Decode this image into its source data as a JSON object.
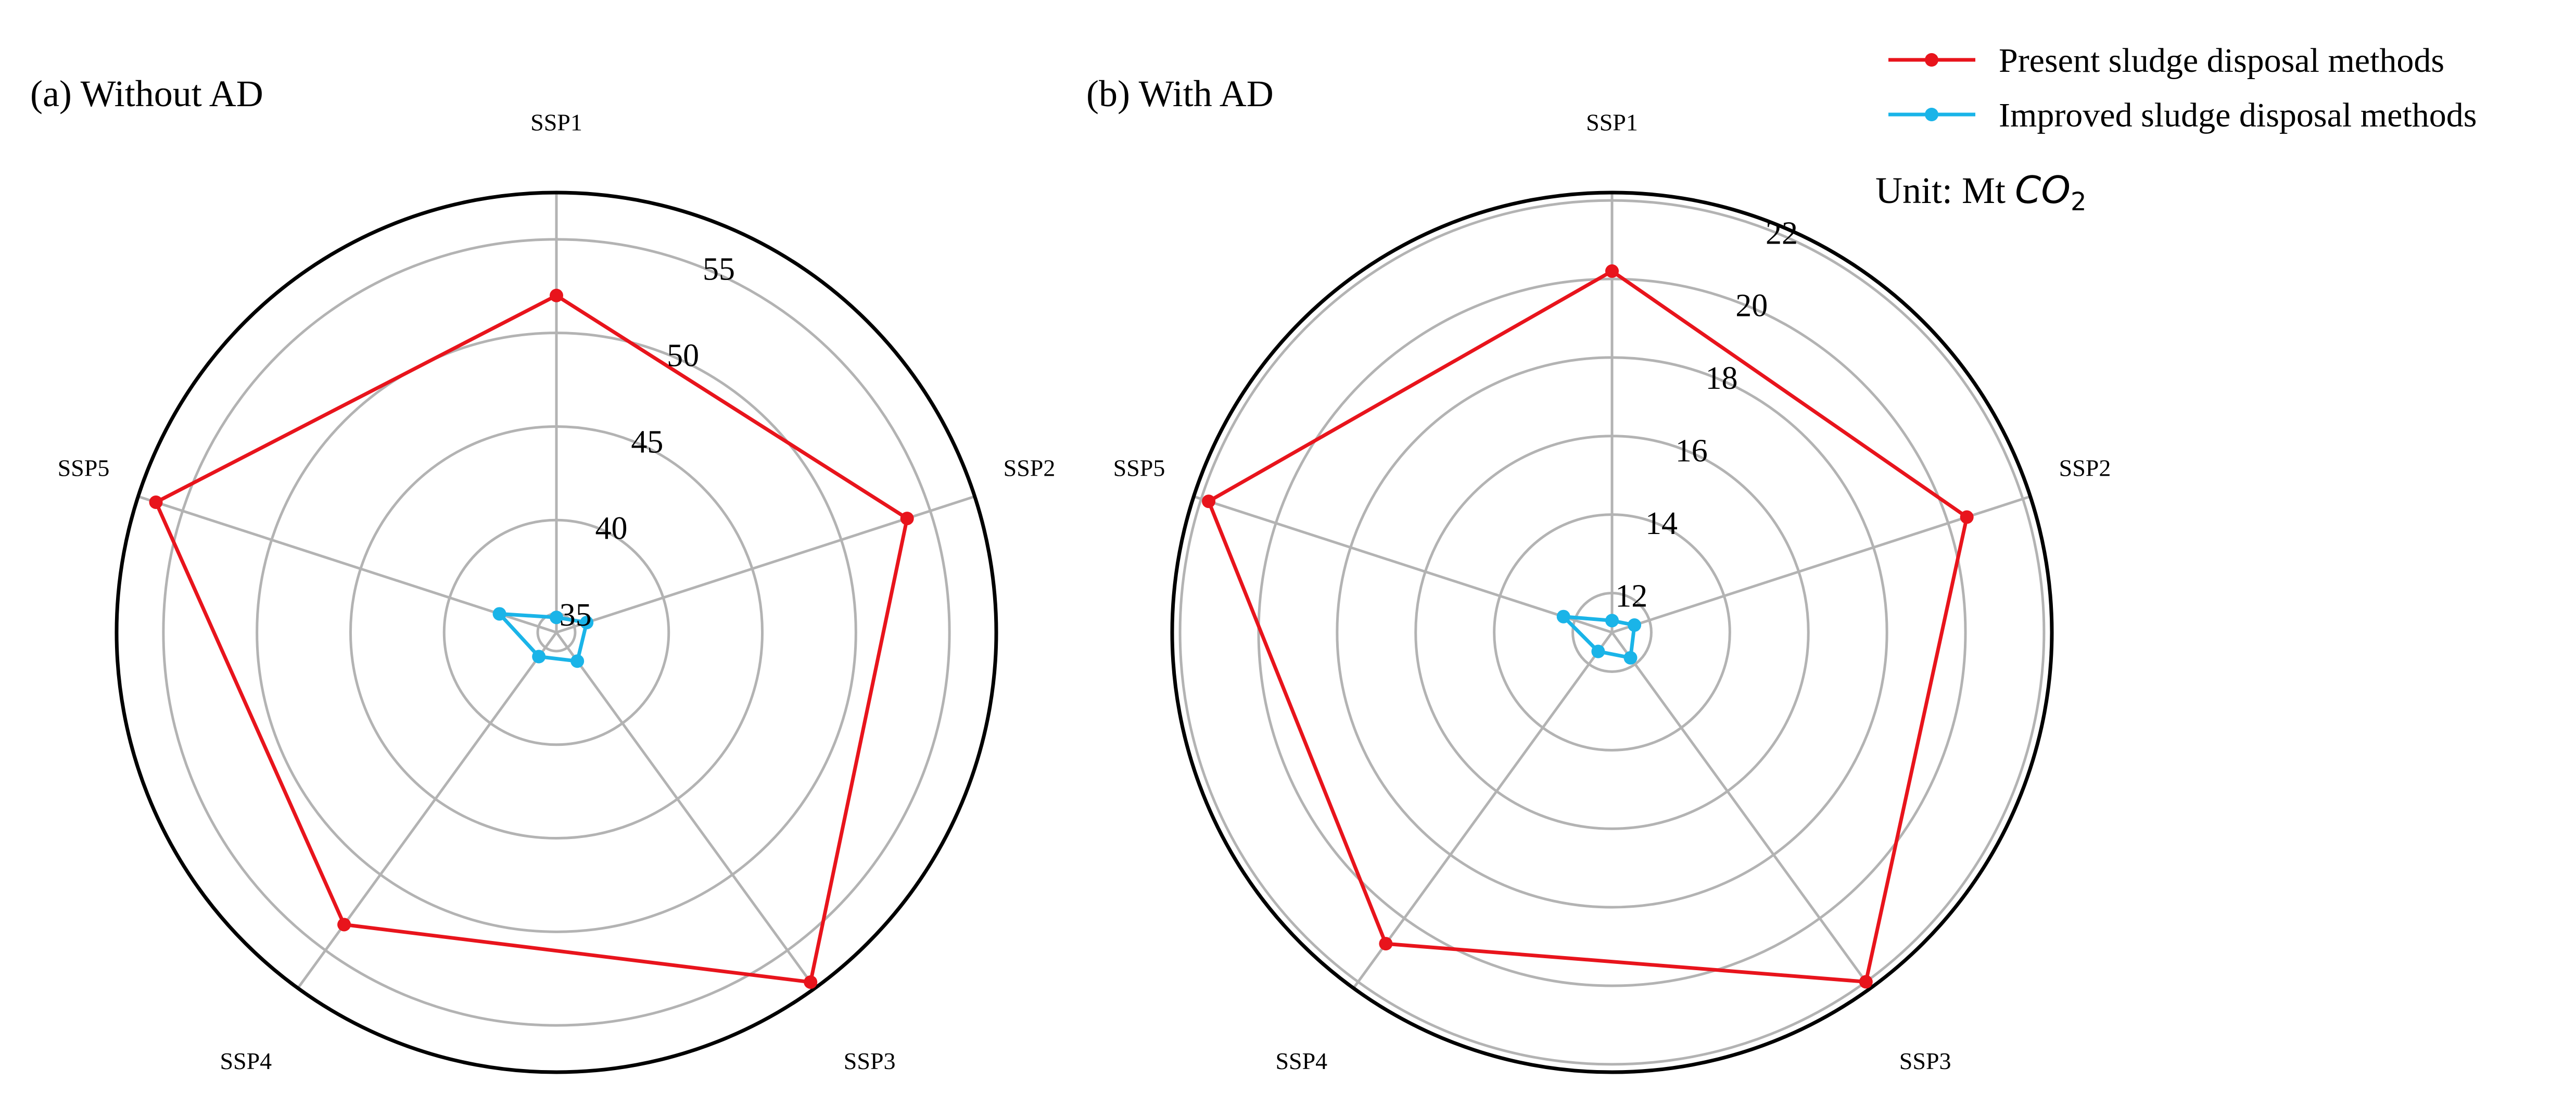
{
  "legend": {
    "placement": "top-right",
    "entries": [
      {
        "label": "Present sludge disposal methods",
        "color": "#e8141c"
      },
      {
        "label": "Improved sludge disposal methods",
        "color": "#1ab4e8"
      }
    ]
  },
  "unit": {
    "prefix": "Unit: Mt ",
    "chem": "CO",
    "subscript": "2"
  },
  "chart_data": [
    {
      "type": "radar",
      "panel_title": "(a) Without AD",
      "axes": [
        "SSP1",
        "SSP2",
        "SSP3",
        "SSP4",
        "SSP5"
      ],
      "rlim": [
        34,
        57.5
      ],
      "rticks": [
        35,
        40,
        45,
        50,
        55
      ],
      "grid": true,
      "series": [
        {
          "name": "Present sludge disposal methods",
          "color": "#e8141c",
          "values": [
            52.0,
            53.7,
            57.1,
            53.3,
            56.5
          ]
        },
        {
          "name": "Improved sludge disposal methods",
          "color": "#1ab4e8",
          "values": [
            34.8,
            35.7,
            35.9,
            35.6,
            37.2
          ]
        }
      ]
    },
    {
      "type": "radar",
      "panel_title": "(b) With AD",
      "axes": [
        "SSP1",
        "SSP2",
        "SSP3",
        "SSP4",
        "SSP5"
      ],
      "rlim": [
        11,
        22.2
      ],
      "rticks": [
        12,
        14,
        16,
        18,
        20,
        22
      ],
      "grid": true,
      "series": [
        {
          "name": "Present sludge disposal methods",
          "color": "#e8141c",
          "values": [
            20.2,
            20.5,
            22.0,
            20.8,
            21.8
          ]
        },
        {
          "name": "Improved sludge disposal methods",
          "color": "#1ab4e8",
          "values": [
            11.3,
            11.6,
            11.8,
            11.6,
            12.3
          ]
        }
      ]
    }
  ]
}
